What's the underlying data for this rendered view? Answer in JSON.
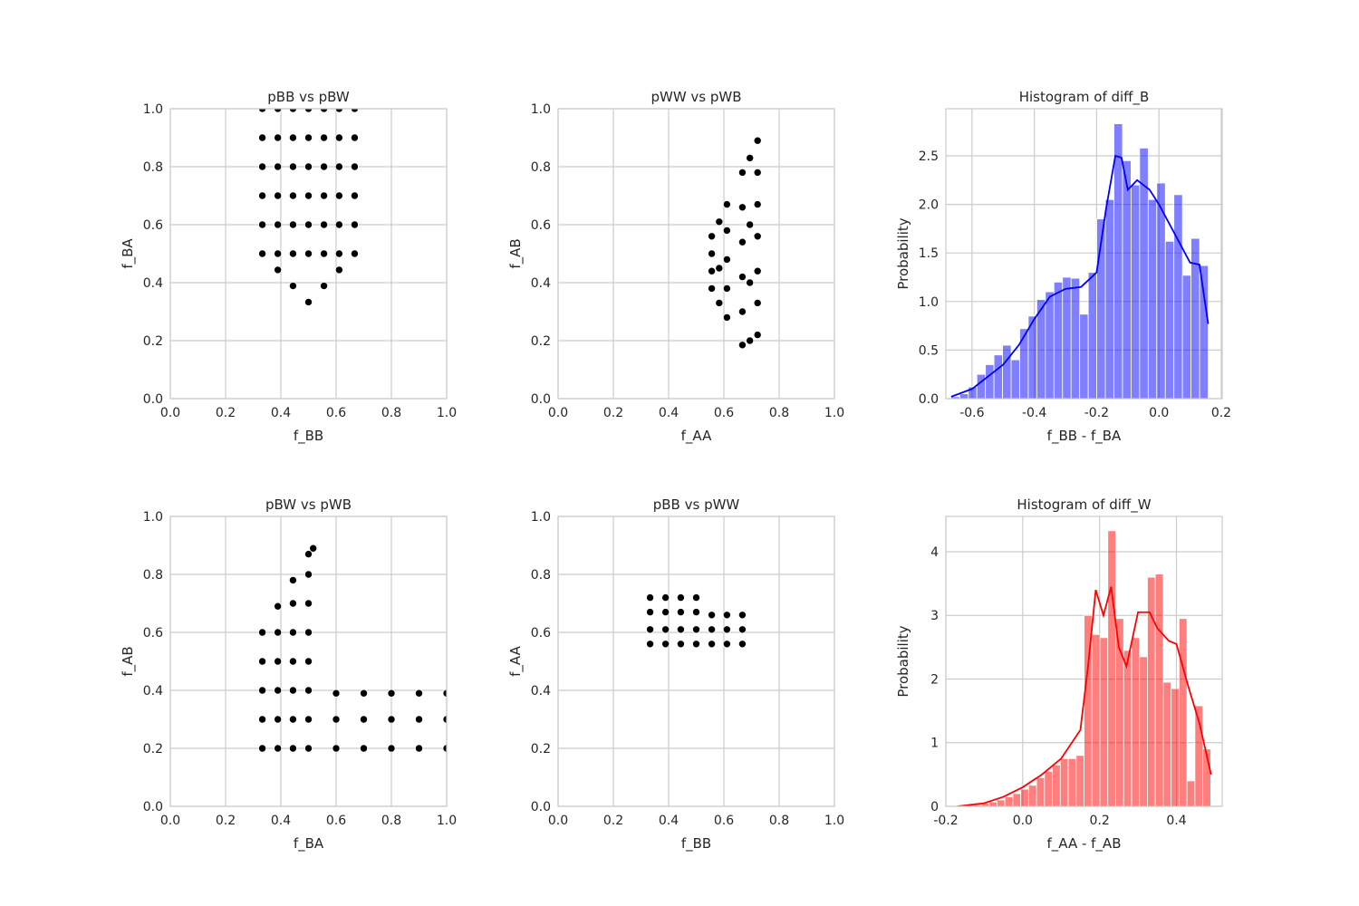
{
  "chart_data": [
    {
      "type": "scatter",
      "title": "pBB vs pBW",
      "x_label": "f_BB",
      "y_label": "f_BA",
      "color": "black",
      "grid": true,
      "xlim": [
        0,
        1
      ],
      "ylim": [
        0,
        1
      ],
      "xticks": [
        {
          "value": 0,
          "label": "0.0"
        },
        0.2,
        0.4,
        0.6,
        0.8,
        {
          "value": 1,
          "label": "1.0"
        }
      ],
      "yticks": [
        {
          "value": 0,
          "label": "0.0"
        },
        0.2,
        0.4,
        0.6,
        0.8,
        {
          "value": 1,
          "label": "1.0"
        }
      ],
      "x": [
        0.333,
        0.333,
        0.333,
        0.333,
        0.333,
        0.333,
        0.389,
        0.389,
        0.389,
        0.389,
        0.389,
        0.389,
        0.444,
        0.444,
        0.444,
        0.444,
        0.444,
        0.444,
        0.5,
        0.5,
        0.5,
        0.5,
        0.5,
        0.5,
        0.556,
        0.556,
        0.556,
        0.556,
        0.556,
        0.556,
        0.611,
        0.611,
        0.611,
        0.611,
        0.611,
        0.611,
        0.667,
        0.667,
        0.667,
        0.667,
        0.667,
        0.667,
        0.5,
        0.444,
        0.556,
        0.389,
        0.611
      ],
      "y": [
        1.0,
        0.9,
        0.8,
        0.7,
        0.6,
        0.5,
        1.0,
        0.9,
        0.8,
        0.7,
        0.6,
        0.5,
        1.0,
        0.9,
        0.8,
        0.7,
        0.6,
        0.5,
        1.0,
        0.9,
        0.8,
        0.7,
        0.6,
        0.5,
        1.0,
        0.9,
        0.8,
        0.7,
        0.6,
        0.5,
        1.0,
        0.9,
        0.8,
        0.7,
        0.6,
        0.5,
        1.0,
        0.9,
        0.8,
        0.7,
        0.6,
        0.5,
        0.333,
        0.389,
        0.389,
        0.444,
        0.444
      ]
    },
    {
      "type": "scatter",
      "title": "pWW vs pWB",
      "x_label": "f_AA",
      "y_label": "f_AB",
      "color": "black",
      "grid": true,
      "xlim": [
        0,
        1
      ],
      "ylim": [
        0,
        1
      ],
      "xticks": [
        {
          "value": 0,
          "label": "0.0"
        },
        0.2,
        0.4,
        0.6,
        0.8,
        {
          "value": 1,
          "label": "1.0"
        }
      ],
      "yticks": [
        {
          "value": 0,
          "label": "0.0"
        },
        0.2,
        0.4,
        0.6,
        0.8,
        {
          "value": 1,
          "label": "1.0"
        }
      ],
      "x": [
        0.556,
        0.556,
        0.556,
        0.556,
        0.583,
        0.583,
        0.583,
        0.611,
        0.611,
        0.611,
        0.611,
        0.611,
        0.667,
        0.667,
        0.667,
        0.667,
        0.667,
        0.667,
        0.694,
        0.694,
        0.694,
        0.694,
        0.722,
        0.722,
        0.722,
        0.722,
        0.722,
        0.722,
        0.722
      ],
      "y": [
        0.38,
        0.44,
        0.5,
        0.56,
        0.33,
        0.45,
        0.61,
        0.28,
        0.38,
        0.48,
        0.58,
        0.67,
        0.185,
        0.3,
        0.42,
        0.54,
        0.66,
        0.78,
        0.2,
        0.4,
        0.6,
        0.83,
        0.22,
        0.33,
        0.44,
        0.56,
        0.67,
        0.78,
        0.89
      ]
    },
    {
      "type": "histogram",
      "title": "Histogram of diff_B",
      "x_label": "f_BB - f_BA",
      "y_label": "Probability",
      "color": "blue",
      "grid": true,
      "xlim": [
        -0.684,
        0.203
      ],
      "ylim": [
        0,
        2.985
      ],
      "xticks": [
        -0.6,
        -0.4,
        -0.2,
        {
          "value": 0,
          "label": "0.0"
        },
        0.2
      ],
      "yticks": [
        {
          "value": 0,
          "label": "0.0"
        },
        0.5,
        {
          "value": 1,
          "label": "1.0"
        },
        1.5,
        {
          "value": 2,
          "label": "2.0"
        },
        2.5
      ],
      "bins": [
        -0.667,
        -0.6395,
        -0.612,
        -0.5845,
        -0.557,
        -0.5295,
        -0.502,
        -0.4745,
        -0.447,
        -0.4195,
        -0.392,
        -0.3645,
        -0.337,
        -0.3095,
        -0.282,
        -0.2545,
        -0.227,
        -0.1995,
        -0.172,
        -0.1445,
        -0.117,
        -0.0895,
        -0.062,
        -0.0345,
        -0.007,
        0.0205,
        0.048,
        0.0755,
        0.103,
        0.1305,
        0.158
      ],
      "values": [
        0.02,
        0.05,
        0.12,
        0.25,
        0.35,
        0.45,
        0.55,
        0.4,
        0.72,
        0.85,
        1.02,
        1.1,
        1.2,
        1.25,
        1.24,
        0.87,
        1.3,
        1.85,
        2.05,
        2.83,
        2.45,
        2.2,
        2.58,
        2.05,
        2.22,
        1.62,
        2.1,
        1.27,
        1.65,
        1.37
      ],
      "kde": {
        "color": "blue",
        "x": [
          -0.667,
          -0.6,
          -0.5,
          -0.45,
          -0.4,
          -0.35,
          -0.3,
          -0.25,
          -0.2,
          -0.17,
          -0.14,
          -0.12,
          -0.1,
          -0.07,
          -0.03,
          0.0,
          0.05,
          0.1,
          0.13,
          0.158
        ],
        "values": [
          0.02,
          0.1,
          0.35,
          0.55,
          0.82,
          1.05,
          1.13,
          1.15,
          1.3,
          1.95,
          2.5,
          2.48,
          2.15,
          2.25,
          2.15,
          2.0,
          1.7,
          1.4,
          1.38,
          0.77
        ]
      }
    },
    {
      "type": "scatter",
      "title": "pBW vs pWB",
      "x_label": "f_BA",
      "y_label": "f_AB",
      "color": "black",
      "grid": true,
      "xlim": [
        0,
        1
      ],
      "ylim": [
        0,
        1
      ],
      "xticks": [
        {
          "value": 0,
          "label": "0.0"
        },
        0.2,
        0.4,
        0.6,
        0.8,
        {
          "value": 1,
          "label": "1.0"
        }
      ],
      "yticks": [
        {
          "value": 0,
          "label": "0.0"
        },
        0.2,
        0.4,
        0.6,
        0.8,
        {
          "value": 1,
          "label": "1.0"
        }
      ],
      "x": [
        0.333,
        0.333,
        0.333,
        0.333,
        0.333,
        0.389,
        0.389,
        0.389,
        0.389,
        0.389,
        0.389,
        0.444,
        0.444,
        0.444,
        0.444,
        0.444,
        0.444,
        0.444,
        0.5,
        0.5,
        0.5,
        0.5,
        0.5,
        0.5,
        0.5,
        0.5,
        0.517,
        0.6,
        0.6,
        0.6,
        0.7,
        0.7,
        0.7,
        0.8,
        0.8,
        0.8,
        0.9,
        0.9,
        0.9,
        1.0,
        1.0,
        1.0
      ],
      "y": [
        0.2,
        0.3,
        0.4,
        0.5,
        0.6,
        0.2,
        0.3,
        0.4,
        0.5,
        0.6,
        0.69,
        0.2,
        0.3,
        0.4,
        0.5,
        0.6,
        0.7,
        0.78,
        0.2,
        0.3,
        0.4,
        0.5,
        0.6,
        0.7,
        0.8,
        0.87,
        0.89,
        0.2,
        0.3,
        0.39,
        0.2,
        0.3,
        0.39,
        0.2,
        0.3,
        0.39,
        0.2,
        0.3,
        0.39,
        0.2,
        0.3,
        0.39
      ]
    },
    {
      "type": "scatter",
      "title": "pBB vs pWW",
      "x_label": "f_BB",
      "y_label": "f_AA",
      "color": "black",
      "grid": true,
      "xlim": [
        0,
        1
      ],
      "ylim": [
        0,
        1
      ],
      "xticks": [
        {
          "value": 0,
          "label": "0.0"
        },
        0.2,
        0.4,
        0.6,
        0.8,
        {
          "value": 1,
          "label": "1.0"
        }
      ],
      "yticks": [
        {
          "value": 0,
          "label": "0.0"
        },
        0.2,
        0.4,
        0.6,
        0.8,
        {
          "value": 1,
          "label": "1.0"
        }
      ],
      "x": [
        0.333,
        0.333,
        0.333,
        0.333,
        0.389,
        0.389,
        0.389,
        0.389,
        0.444,
        0.444,
        0.444,
        0.444,
        0.5,
        0.5,
        0.5,
        0.5,
        0.556,
        0.556,
        0.556,
        0.611,
        0.611,
        0.611,
        0.667,
        0.667,
        0.667
      ],
      "y": [
        0.56,
        0.61,
        0.67,
        0.72,
        0.56,
        0.61,
        0.67,
        0.72,
        0.56,
        0.61,
        0.67,
        0.72,
        0.56,
        0.61,
        0.67,
        0.72,
        0.56,
        0.61,
        0.66,
        0.56,
        0.61,
        0.66,
        0.56,
        0.61,
        0.66
      ]
    },
    {
      "type": "histogram",
      "title": "Histogram of diff_W",
      "x_label": "f_AA - f_AB",
      "y_label": "Probability",
      "color": "red",
      "grid": true,
      "xlim": [
        -0.2,
        0.519
      ],
      "ylim": [
        0,
        4.555
      ],
      "xticks": [
        -0.2,
        {
          "value": 0,
          "label": "0.0"
        },
        0.2,
        0.4
      ],
      "yticks": [
        0,
        1,
        2,
        3,
        4
      ],
      "bins": [
        -0.17,
        -0.1494,
        -0.1288,
        -0.1082,
        -0.0876,
        -0.067,
        -0.0464,
        -0.0258,
        -0.0052,
        0.0154,
        0.036,
        0.0566,
        0.0772,
        0.0978,
        0.1184,
        0.139,
        0.1596,
        0.1802,
        0.2008,
        0.2214,
        0.242,
        0.2626,
        0.2832,
        0.3038,
        0.3244,
        0.345,
        0.3656,
        0.3862,
        0.4068,
        0.4274,
        0.448,
        0.4686,
        0.4892
      ],
      "values": [
        0.01,
        0.02,
        0.03,
        0.05,
        0.07,
        0.1,
        0.15,
        0.2,
        0.27,
        0.33,
        0.45,
        0.55,
        0.65,
        0.75,
        0.75,
        0.8,
        3.0,
        2.7,
        2.65,
        4.33,
        2.95,
        2.45,
        2.65,
        2.35,
        3.6,
        3.65,
        1.95,
        1.85,
        2.95,
        0.4,
        1.58,
        0.9
      ],
      "kde": {
        "color": "red",
        "x": [
          -0.17,
          -0.1,
          -0.05,
          0.0,
          0.05,
          0.1,
          0.15,
          0.17,
          0.19,
          0.21,
          0.23,
          0.25,
          0.27,
          0.3,
          0.33,
          0.35,
          0.38,
          0.4,
          0.43,
          0.46,
          0.49
        ],
        "values": [
          0.0,
          0.05,
          0.15,
          0.3,
          0.5,
          0.75,
          1.2,
          2.2,
          3.4,
          3.0,
          3.45,
          2.5,
          2.2,
          3.05,
          3.05,
          2.8,
          2.6,
          2.55,
          1.9,
          1.3,
          0.5
        ]
      }
    }
  ]
}
